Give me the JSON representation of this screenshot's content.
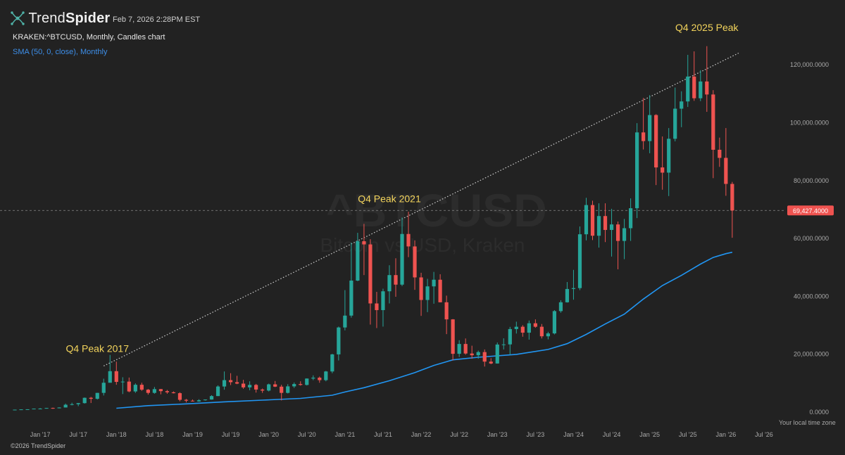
{
  "header": {
    "brand_prefix": "Trend",
    "brand_suffix": "Spider",
    "timestamp": "Feb 7, 2026 2:28PM EST",
    "symbol_line": "KRAKEN:^BTCUSD, Monthly, Candles chart",
    "indicator_label": "SMA (50, 0, close), Monthly"
  },
  "footer": {
    "copyright": "©2026 TrendSpider",
    "timezone_note": "Your local time zone"
  },
  "watermark": {
    "ticker": "^BTCUSD",
    "name": "Bitcoin vs USD, Kraken"
  },
  "colors": {
    "background": "#222222",
    "up": "#26a69a",
    "down": "#ef5350",
    "sma": "#2196f3",
    "annotation": "#f3d45c",
    "price_badge": "#ef5350"
  },
  "chart_data": {
    "type": "candlestick",
    "x_tick_labels": [
      "Jan '17",
      "Jul '17",
      "Jan '18",
      "Jul '18",
      "Jan '19",
      "Jul '19",
      "Jan '20",
      "Jul '20",
      "Jan '21",
      "Jul '21",
      "Jan '22",
      "Jul '22",
      "Jan '23",
      "Jul '23",
      "Jan '24",
      "Jul '24",
      "Jan '25",
      "Jul '25",
      "Jan '26",
      "Jul '26"
    ],
    "y_tick_labels": [
      "0.0000",
      "20,000.0000",
      "40,000.0000",
      "60,000.0000",
      "80,000.0000",
      "100,000.0000",
      "120,000.0000"
    ],
    "ylim": [
      0,
      130000
    ],
    "x_range": [
      "2016-08",
      "2026-10"
    ],
    "last_price_label": "69,427.4000",
    "last_price": 69427.4,
    "candles": [
      {
        "t": "2016-09",
        "o": 570,
        "h": 620,
        "l": 560,
        "c": 610
      },
      {
        "t": "2016-10",
        "o": 610,
        "h": 720,
        "l": 600,
        "c": 700
      },
      {
        "t": "2016-11",
        "o": 700,
        "h": 750,
        "l": 680,
        "c": 740
      },
      {
        "t": "2016-12",
        "o": 740,
        "h": 980,
        "l": 730,
        "c": 960
      },
      {
        "t": "2017-01",
        "o": 960,
        "h": 1150,
        "l": 750,
        "c": 970
      },
      {
        "t": "2017-02",
        "o": 970,
        "h": 1200,
        "l": 950,
        "c": 1190
      },
      {
        "t": "2017-03",
        "o": 1190,
        "h": 1300,
        "l": 900,
        "c": 1080
      },
      {
        "t": "2017-04",
        "o": 1080,
        "h": 1400,
        "l": 1070,
        "c": 1350
      },
      {
        "t": "2017-05",
        "o": 1350,
        "h": 2700,
        "l": 1340,
        "c": 2300
      },
      {
        "t": "2017-06",
        "o": 2300,
        "h": 3000,
        "l": 2100,
        "c": 2480
      },
      {
        "t": "2017-07",
        "o": 2480,
        "h": 2900,
        "l": 1800,
        "c": 2860
      },
      {
        "t": "2017-08",
        "o": 2860,
        "h": 4800,
        "l": 2700,
        "c": 4700
      },
      {
        "t": "2017-09",
        "o": 4700,
        "h": 5000,
        "l": 2900,
        "c": 4350
      },
      {
        "t": "2017-10",
        "o": 4350,
        "h": 6400,
        "l": 4100,
        "c": 6400
      },
      {
        "t": "2017-11",
        "o": 6400,
        "h": 11300,
        "l": 5500,
        "c": 9900
      },
      {
        "t": "2017-12",
        "o": 9900,
        "h": 19500,
        "l": 10800,
        "c": 13900
      },
      {
        "t": "2018-01",
        "o": 13900,
        "h": 17200,
        "l": 9200,
        "c": 10200
      },
      {
        "t": "2018-02",
        "o": 10200,
        "h": 11800,
        "l": 6000,
        "c": 10300
      },
      {
        "t": "2018-03",
        "o": 10300,
        "h": 11700,
        "l": 6600,
        "c": 6900
      },
      {
        "t": "2018-04",
        "o": 6900,
        "h": 9700,
        "l": 6400,
        "c": 9200
      },
      {
        "t": "2018-05",
        "o": 9200,
        "h": 9900,
        "l": 7100,
        "c": 7500
      },
      {
        "t": "2018-06",
        "o": 7500,
        "h": 7750,
        "l": 5800,
        "c": 6400
      },
      {
        "t": "2018-07",
        "o": 6400,
        "h": 8450,
        "l": 6100,
        "c": 7700
      },
      {
        "t": "2018-08",
        "o": 7700,
        "h": 7750,
        "l": 5900,
        "c": 7000
      },
      {
        "t": "2018-09",
        "o": 7000,
        "h": 7400,
        "l": 6100,
        "c": 6600
      },
      {
        "t": "2018-10",
        "o": 6600,
        "h": 6900,
        "l": 6200,
        "c": 6300
      },
      {
        "t": "2018-11",
        "o": 6300,
        "h": 6600,
        "l": 3500,
        "c": 4000
      },
      {
        "t": "2018-12",
        "o": 4000,
        "h": 4300,
        "l": 3100,
        "c": 3700
      },
      {
        "t": "2019-01",
        "o": 3700,
        "h": 4100,
        "l": 3400,
        "c": 3450
      },
      {
        "t": "2019-02",
        "o": 3450,
        "h": 4200,
        "l": 3350,
        "c": 3850
      },
      {
        "t": "2019-03",
        "o": 3850,
        "h": 4100,
        "l": 3750,
        "c": 4100
      },
      {
        "t": "2019-04",
        "o": 4100,
        "h": 5600,
        "l": 4050,
        "c": 5300
      },
      {
        "t": "2019-05",
        "o": 5300,
        "h": 9000,
        "l": 5300,
        "c": 8600
      },
      {
        "t": "2019-06",
        "o": 8600,
        "h": 13800,
        "l": 7500,
        "c": 10800
      },
      {
        "t": "2019-07",
        "o": 10800,
        "h": 13200,
        "l": 9100,
        "c": 10100
      },
      {
        "t": "2019-08",
        "o": 10100,
        "h": 12300,
        "l": 9400,
        "c": 9600
      },
      {
        "t": "2019-09",
        "o": 9600,
        "h": 10900,
        "l": 7800,
        "c": 8300
      },
      {
        "t": "2019-10",
        "o": 8300,
        "h": 10400,
        "l": 7300,
        "c": 9150
      },
      {
        "t": "2019-11",
        "o": 9150,
        "h": 9500,
        "l": 6500,
        "c": 7550
      },
      {
        "t": "2019-12",
        "o": 7550,
        "h": 7900,
        "l": 6400,
        "c": 7200
      },
      {
        "t": "2020-01",
        "o": 7200,
        "h": 9600,
        "l": 6900,
        "c": 9350
      },
      {
        "t": "2020-02",
        "o": 9350,
        "h": 10500,
        "l": 8400,
        "c": 8550
      },
      {
        "t": "2020-03",
        "o": 8550,
        "h": 9200,
        "l": 3800,
        "c": 6400
      },
      {
        "t": "2020-04",
        "o": 6400,
        "h": 9400,
        "l": 6200,
        "c": 8650
      },
      {
        "t": "2020-05",
        "o": 8650,
        "h": 10000,
        "l": 8100,
        "c": 9450
      },
      {
        "t": "2020-06",
        "o": 9450,
        "h": 10400,
        "l": 8900,
        "c": 9150
      },
      {
        "t": "2020-07",
        "o": 9150,
        "h": 11400,
        "l": 8950,
        "c": 11350
      },
      {
        "t": "2020-08",
        "o": 11350,
        "h": 12450,
        "l": 10800,
        "c": 11650
      },
      {
        "t": "2020-09",
        "o": 11650,
        "h": 12050,
        "l": 9900,
        "c": 10800
      },
      {
        "t": "2020-10",
        "o": 10800,
        "h": 14000,
        "l": 10400,
        "c": 13800
      },
      {
        "t": "2020-11",
        "o": 13800,
        "h": 19900,
        "l": 13200,
        "c": 19700
      },
      {
        "t": "2020-12",
        "o": 19700,
        "h": 29300,
        "l": 17600,
        "c": 29000
      },
      {
        "t": "2021-01",
        "o": 29000,
        "h": 41900,
        "l": 28000,
        "c": 33100
      },
      {
        "t": "2021-02",
        "o": 33100,
        "h": 58300,
        "l": 32400,
        "c": 45200
      },
      {
        "t": "2021-03",
        "o": 45200,
        "h": 61700,
        "l": 45000,
        "c": 58800
      },
      {
        "t": "2021-04",
        "o": 58800,
        "h": 64800,
        "l": 47100,
        "c": 57700
      },
      {
        "t": "2021-05",
        "o": 57700,
        "h": 59500,
        "l": 30000,
        "c": 37300
      },
      {
        "t": "2021-06",
        "o": 37300,
        "h": 41300,
        "l": 28800,
        "c": 35000
      },
      {
        "t": "2021-07",
        "o": 35000,
        "h": 42400,
        "l": 29300,
        "c": 41500
      },
      {
        "t": "2021-08",
        "o": 41500,
        "h": 50500,
        "l": 37300,
        "c": 47100
      },
      {
        "t": "2021-09",
        "o": 47100,
        "h": 52900,
        "l": 39600,
        "c": 43800
      },
      {
        "t": "2021-10",
        "o": 43800,
        "h": 67000,
        "l": 43300,
        "c": 61300
      },
      {
        "t": "2021-11",
        "o": 61300,
        "h": 69000,
        "l": 53300,
        "c": 57000
      },
      {
        "t": "2021-12",
        "o": 57000,
        "h": 59100,
        "l": 42000,
        "c": 46300
      },
      {
        "t": "2022-01",
        "o": 46300,
        "h": 47900,
        "l": 33000,
        "c": 38500
      },
      {
        "t": "2022-02",
        "o": 38500,
        "h": 45800,
        "l": 34300,
        "c": 43200
      },
      {
        "t": "2022-03",
        "o": 43200,
        "h": 48200,
        "l": 37200,
        "c": 45500
      },
      {
        "t": "2022-04",
        "o": 45500,
        "h": 47400,
        "l": 37700,
        "c": 37700
      },
      {
        "t": "2022-05",
        "o": 37700,
        "h": 40000,
        "l": 26700,
        "c": 31800
      },
      {
        "t": "2022-06",
        "o": 31800,
        "h": 31900,
        "l": 17600,
        "c": 19900
      },
      {
        "t": "2022-07",
        "o": 19900,
        "h": 24600,
        "l": 18800,
        "c": 23300
      },
      {
        "t": "2022-08",
        "o": 23300,
        "h": 25200,
        "l": 19600,
        "c": 20000
      },
      {
        "t": "2022-09",
        "o": 20000,
        "h": 22700,
        "l": 18200,
        "c": 19400
      },
      {
        "t": "2022-10",
        "o": 19400,
        "h": 21000,
        "l": 18200,
        "c": 20500
      },
      {
        "t": "2022-11",
        "o": 20500,
        "h": 21400,
        "l": 15500,
        "c": 17200
      },
      {
        "t": "2022-12",
        "o": 17200,
        "h": 18400,
        "l": 16300,
        "c": 16550
      },
      {
        "t": "2023-01",
        "o": 16550,
        "h": 23800,
        "l": 16500,
        "c": 23100
      },
      {
        "t": "2023-02",
        "o": 23100,
        "h": 25250,
        "l": 21400,
        "c": 23150
      },
      {
        "t": "2023-03",
        "o": 23150,
        "h": 29200,
        "l": 19600,
        "c": 28450
      },
      {
        "t": "2023-04",
        "o": 28450,
        "h": 31000,
        "l": 26900,
        "c": 29250
      },
      {
        "t": "2023-05",
        "o": 29250,
        "h": 29800,
        "l": 25800,
        "c": 27200
      },
      {
        "t": "2023-06",
        "o": 27200,
        "h": 31400,
        "l": 24800,
        "c": 30450
      },
      {
        "t": "2023-07",
        "o": 30450,
        "h": 31800,
        "l": 28900,
        "c": 29250
      },
      {
        "t": "2023-08",
        "o": 29250,
        "h": 30200,
        "l": 25200,
        "c": 25950
      },
      {
        "t": "2023-09",
        "o": 25950,
        "h": 27500,
        "l": 24900,
        "c": 26950
      },
      {
        "t": "2023-10",
        "o": 26950,
        "h": 35000,
        "l": 26600,
        "c": 34650
      },
      {
        "t": "2023-11",
        "o": 34650,
        "h": 38400,
        "l": 34100,
        "c": 37700
      },
      {
        "t": "2023-12",
        "o": 37700,
        "h": 44700,
        "l": 37600,
        "c": 42300
      },
      {
        "t": "2024-01",
        "o": 42300,
        "h": 48900,
        "l": 38600,
        "c": 42600
      },
      {
        "t": "2024-02",
        "o": 42600,
        "h": 63900,
        "l": 41900,
        "c": 61200
      },
      {
        "t": "2024-03",
        "o": 61200,
        "h": 73800,
        "l": 59100,
        "c": 71300
      },
      {
        "t": "2024-04",
        "o": 71300,
        "h": 72800,
        "l": 59200,
        "c": 60700
      },
      {
        "t": "2024-05",
        "o": 60700,
        "h": 71900,
        "l": 56600,
        "c": 67500
      },
      {
        "t": "2024-06",
        "o": 67500,
        "h": 71900,
        "l": 58500,
        "c": 62700
      },
      {
        "t": "2024-07",
        "o": 62700,
        "h": 70000,
        "l": 53500,
        "c": 64600
      },
      {
        "t": "2024-08",
        "o": 64600,
        "h": 65600,
        "l": 49100,
        "c": 58900
      },
      {
        "t": "2024-09",
        "o": 58900,
        "h": 66500,
        "l": 52600,
        "c": 63300
      },
      {
        "t": "2024-10",
        "o": 63300,
        "h": 73600,
        "l": 58900,
        "c": 70200
      },
      {
        "t": "2024-11",
        "o": 70200,
        "h": 99600,
        "l": 66800,
        "c": 96400
      },
      {
        "t": "2024-12",
        "o": 96400,
        "h": 108300,
        "l": 90500,
        "c": 93400
      },
      {
        "t": "2025-01",
        "o": 93400,
        "h": 109300,
        "l": 89200,
        "c": 102400
      },
      {
        "t": "2025-02",
        "o": 102400,
        "h": 102700,
        "l": 78200,
        "c": 84300
      },
      {
        "t": "2025-03",
        "o": 84300,
        "h": 95000,
        "l": 76600,
        "c": 82500
      },
      {
        "t": "2025-04",
        "o": 82500,
        "h": 97900,
        "l": 74400,
        "c": 94200
      },
      {
        "t": "2025-05",
        "o": 94200,
        "h": 111900,
        "l": 93300,
        "c": 104600
      },
      {
        "t": "2025-06",
        "o": 104600,
        "h": 110600,
        "l": 98200,
        "c": 107100
      },
      {
        "t": "2025-07",
        "o": 107100,
        "h": 123200,
        "l": 105200,
        "c": 115700
      },
      {
        "t": "2025-08",
        "o": 115700,
        "h": 124400,
        "l": 107300,
        "c": 108200
      },
      {
        "t": "2025-09",
        "o": 108200,
        "h": 117900,
        "l": 107200,
        "c": 114000
      },
      {
        "t": "2025-10",
        "o": 114000,
        "h": 126200,
        "l": 103500,
        "c": 109500
      },
      {
        "t": "2025-11",
        "o": 109500,
        "h": 111000,
        "l": 80600,
        "c": 90400
      },
      {
        "t": "2025-12",
        "o": 90400,
        "h": 94600,
        "l": 84500,
        "c": 87600
      },
      {
        "t": "2026-01",
        "o": 87600,
        "h": 97900,
        "l": 74500,
        "c": 78600
      },
      {
        "t": "2026-02",
        "o": 78600,
        "h": 79300,
        "l": 60000,
        "c": 69427
      }
    ],
    "sma": {
      "label": "SMA (50, 0, close), Monthly",
      "points": [
        [
          "2018-01",
          1100
        ],
        [
          "2018-06",
          2000
        ],
        [
          "2018-12",
          2600
        ],
        [
          "2019-06",
          3300
        ],
        [
          "2019-12",
          3900
        ],
        [
          "2020-06",
          4500
        ],
        [
          "2020-11",
          5600
        ],
        [
          "2021-01",
          6700
        ],
        [
          "2021-04",
          8200
        ],
        [
          "2021-08",
          10600
        ],
        [
          "2021-12",
          13400
        ],
        [
          "2022-03",
          15900
        ],
        [
          "2022-06",
          17800
        ],
        [
          "2022-10",
          18700
        ],
        [
          "2023-04",
          19700
        ],
        [
          "2023-09",
          21400
        ],
        [
          "2023-12",
          23400
        ],
        [
          "2024-03",
          26600
        ],
        [
          "2024-06",
          30200
        ],
        [
          "2024-09",
          33600
        ],
        [
          "2024-12",
          38800
        ],
        [
          "2025-03",
          43500
        ],
        [
          "2025-06",
          47000
        ],
        [
          "2025-09",
          50900
        ],
        [
          "2025-11",
          53200
        ],
        [
          "2026-01",
          54500
        ],
        [
          "2026-02",
          55000
        ]
      ]
    },
    "trendline": {
      "from": {
        "t": "2017-11",
        "v": 15700
      },
      "to": {
        "t": "2026-03",
        "v": 123800
      }
    },
    "annotations": [
      {
        "text": "Q4 Peak 2017",
        "t": "2017-10",
        "v": 20500
      },
      {
        "text": "Q4 Peak 2021",
        "t": "2021-08",
        "v": 72300
      },
      {
        "text": "Q4 2025 Peak",
        "t": "2025-10",
        "v": 131400
      }
    ]
  }
}
